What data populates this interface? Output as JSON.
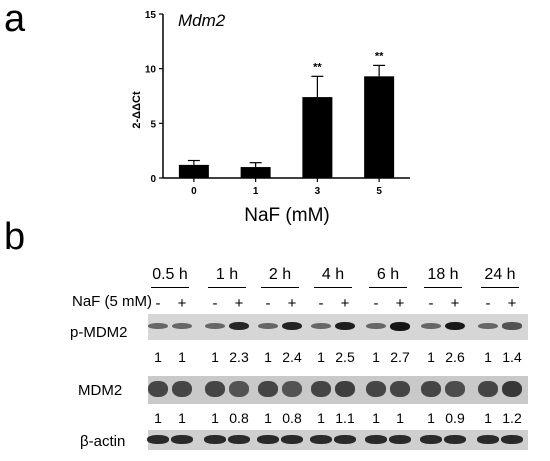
{
  "panel_a": {
    "label": "a",
    "chart_data": {
      "type": "bar",
      "title": "Mdm2",
      "xlabel": "NaF (mM)",
      "ylabel": "2-ΔΔCt",
      "categories": [
        "0",
        "1",
        "3",
        "5"
      ],
      "values": [
        1.2,
        1.0,
        7.4,
        9.3
      ],
      "errors": [
        0.4,
        0.4,
        1.9,
        1.0
      ],
      "annotations": [
        "",
        "",
        "**",
        "**"
      ],
      "ylim": [
        0,
        15
      ],
      "yticks": [
        "0",
        "5",
        "10",
        "15"
      ],
      "bar_color": "#000000",
      "grid": false,
      "legend": "none"
    }
  },
  "panel_b": {
    "label": "b",
    "timepoints": [
      "0.5 h",
      "1 h",
      "2 h",
      "4 h",
      "6 h",
      "18 h",
      "24 h"
    ],
    "treatment_label": "NaF (5 mM)",
    "signs": [
      "-",
      "+"
    ],
    "rows": [
      {
        "name": "p-MDM2",
        "values": [
          "1",
          "1",
          "1",
          "2.3",
          "1",
          "2.4",
          "1",
          "2.5",
          "1",
          "2.7",
          "1",
          "2.6",
          "1",
          "1.4"
        ]
      },
      {
        "name": "MDM2",
        "values": [
          "1",
          "1",
          "1",
          "0.8",
          "1",
          "0.8",
          "1",
          "1.1",
          "1",
          "1",
          "1",
          "0.9",
          "1",
          "1.2"
        ]
      },
      {
        "name": "β-actin",
        "values": []
      }
    ]
  }
}
